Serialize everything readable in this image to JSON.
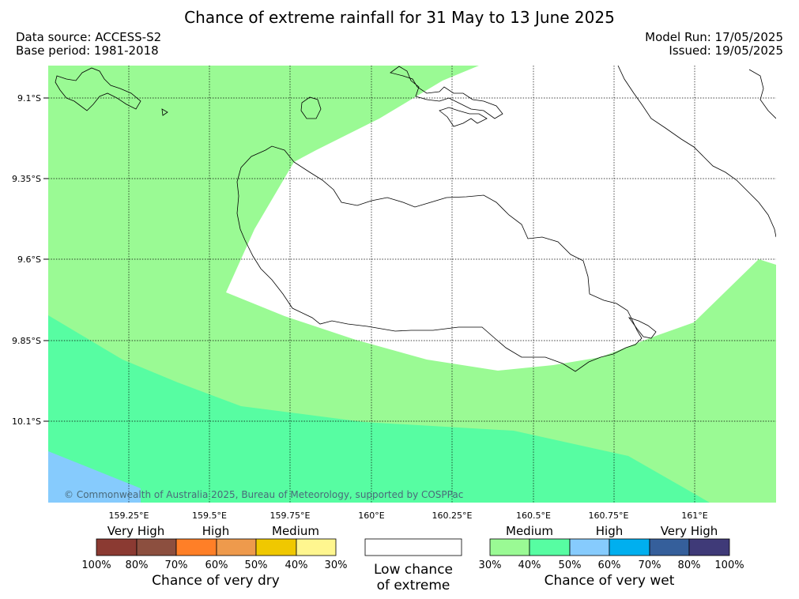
{
  "title": "Chance of extreme rainfall for 31 May to 13 June 2025",
  "data_source": "Data source: ACCESS-S2",
  "base_period": "Base period: 1981-2018",
  "model_run": "Model Run: 17/05/2025",
  "issued": "Issued: 19/05/2025",
  "copyright": "© Commonwealth of Australia 2025, Bureau of Meteorology, supported by COSPPac",
  "lat_labels": [
    "9.1°S",
    "9.35°S",
    "9.6°S",
    "9.85°S",
    "10.1°S"
  ],
  "lon_labels": [
    "159.25°E",
    "159.5°E",
    "159.75°E",
    "160°E",
    "160.25°E",
    "160.5°E",
    "160.75°E",
    "161°E"
  ],
  "legend": {
    "dry": {
      "categories": [
        "Very High",
        "High",
        "Medium"
      ],
      "colors": [
        "#8b3a32",
        "#8c4f3f",
        "#ff7f27",
        "#ee9a4c",
        "#f0c800",
        "#fff68f"
      ],
      "ticks": [
        "100%",
        "80%",
        "70%",
        "60%",
        "50%",
        "40%",
        "30%"
      ],
      "title": "Chance of very dry"
    },
    "low": {
      "line1": "Low chance",
      "line2": "of extreme",
      "color": "#ffffff"
    },
    "wet": {
      "categories": [
        "Medium",
        "High",
        "Very High"
      ],
      "colors": [
        "#9afa94",
        "#57fda2",
        "#86cbfd",
        "#00afef",
        "#355f9b",
        "#3f3a78"
      ],
      "ticks": [
        "30%",
        "40%",
        "50%",
        "60%",
        "70%",
        "80%",
        "100%"
      ],
      "title": "Chance of very wet"
    }
  },
  "map_colors": {
    "medium_wet_30_40": "#9afa94",
    "medium_wet_40_50": "#57fda2",
    "high_wet_50_60": "#86cbfd",
    "low_chance": "#ffffff"
  }
}
